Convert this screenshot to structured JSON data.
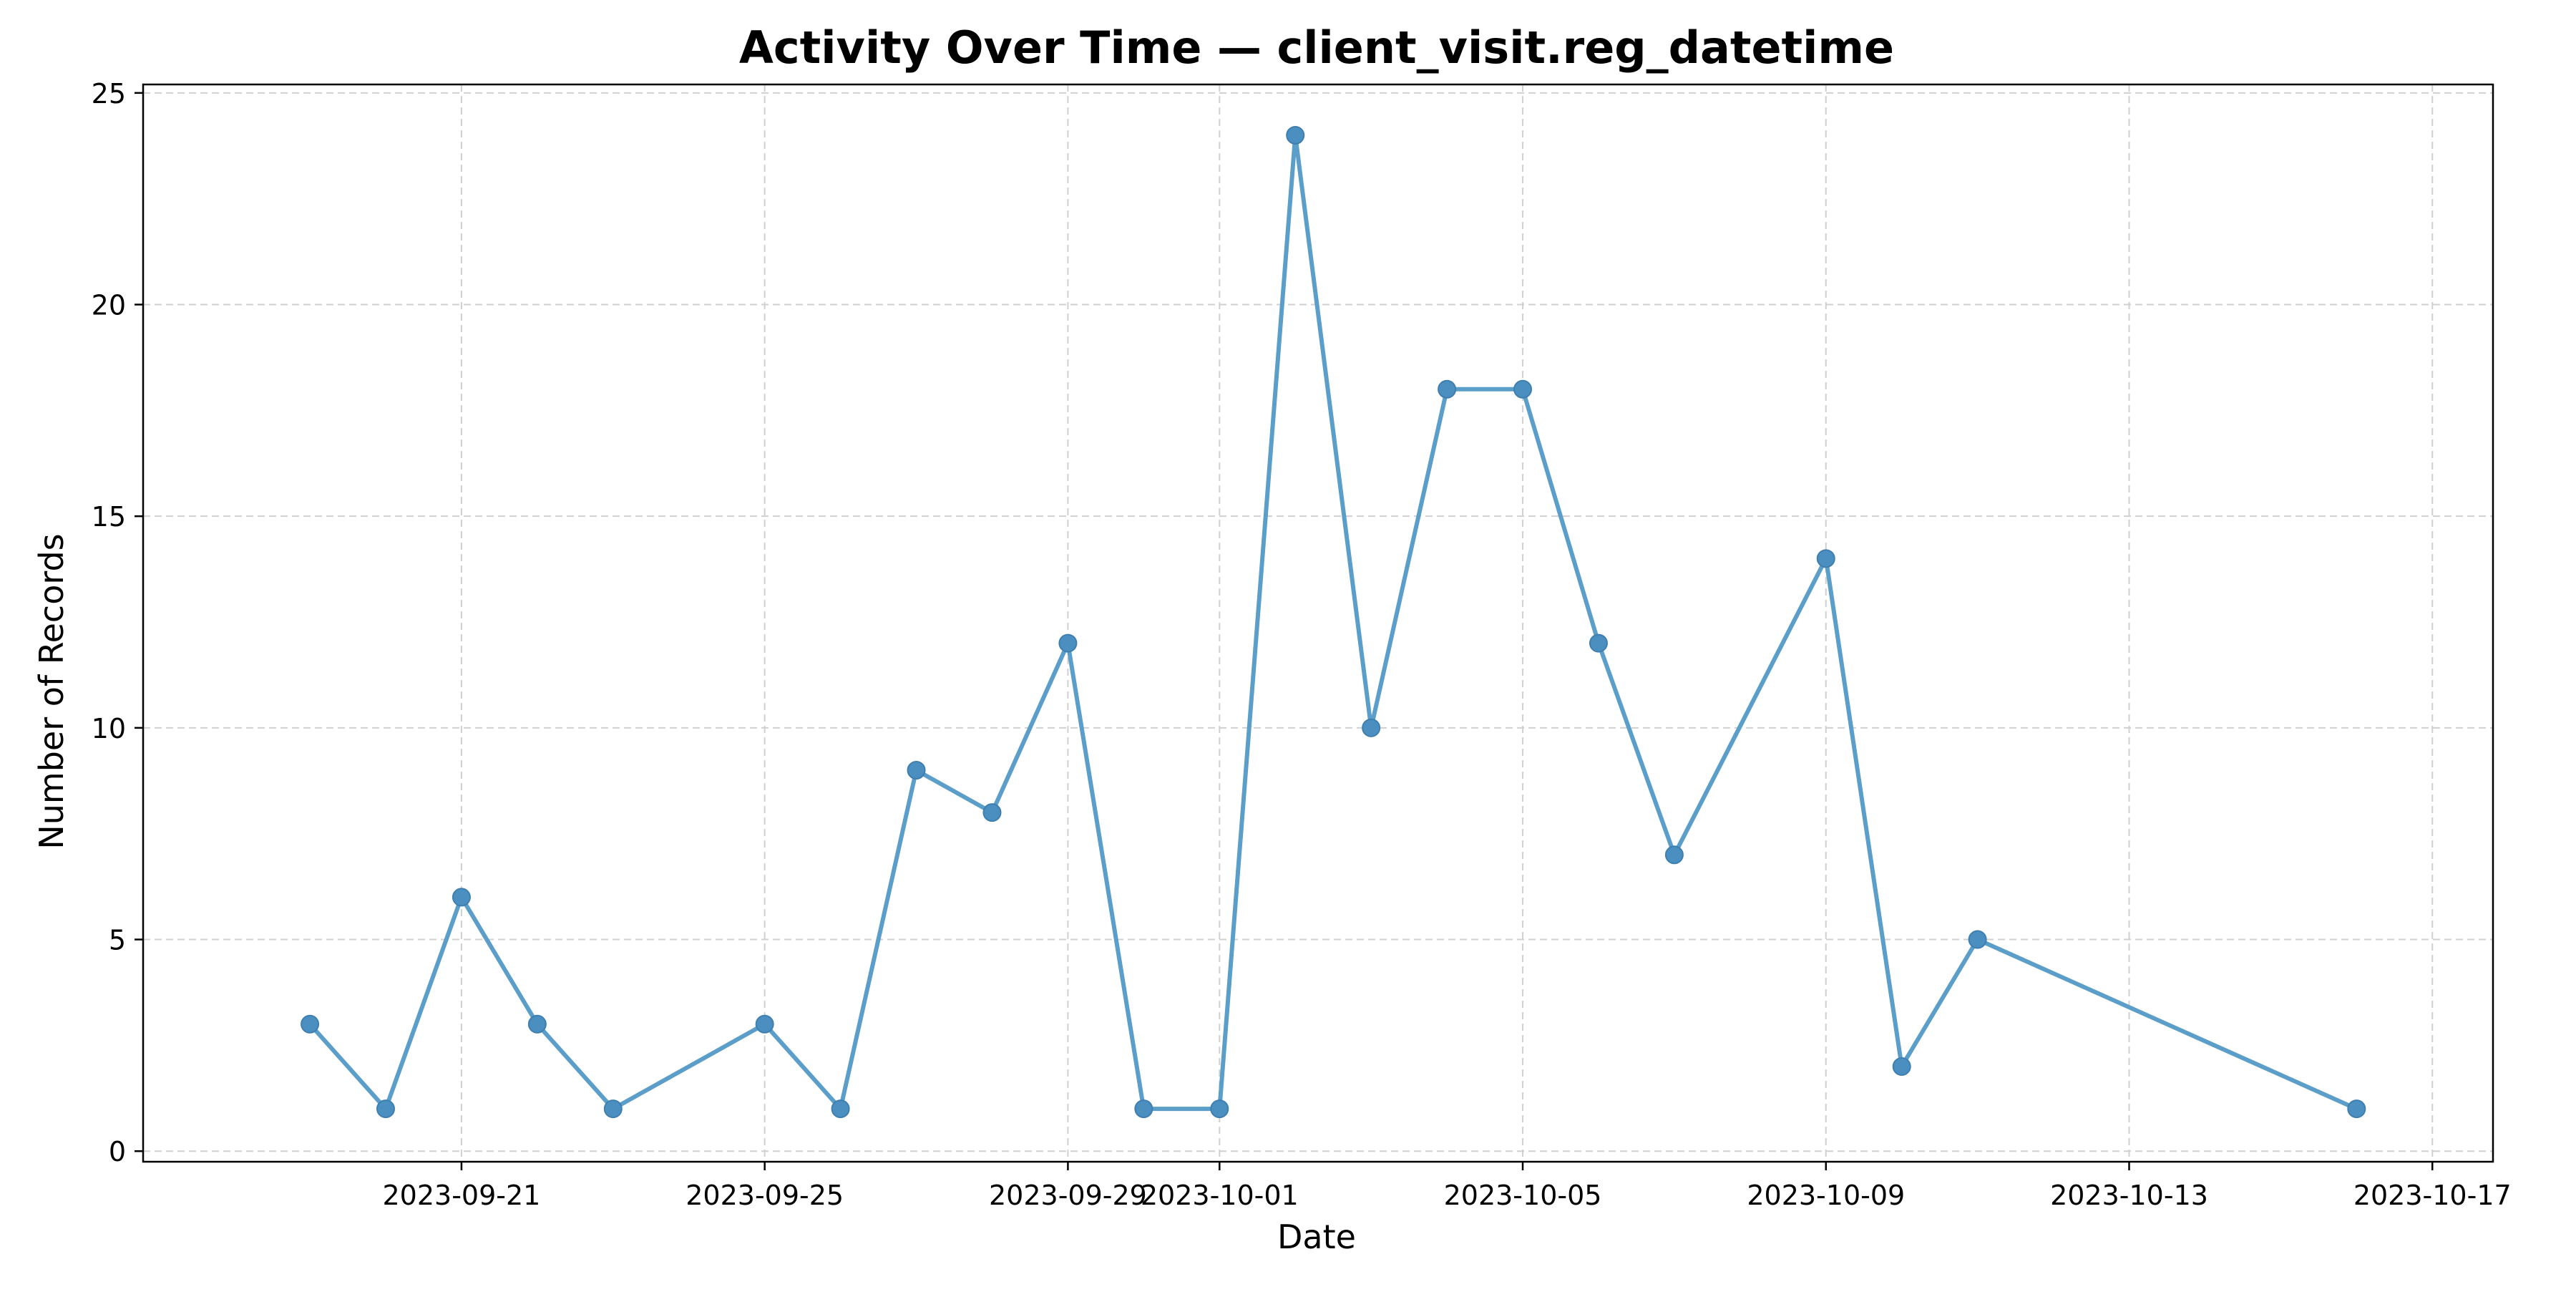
{
  "chart_data": {
    "type": "line",
    "title": "Activity Over Time — client_visit.reg_datetime",
    "xlabel": "Date",
    "ylabel": "Number of Records",
    "x_type": "date",
    "xlim": [
      "2023-09-17",
      "2023-10-17"
    ],
    "ylim": [
      0,
      25
    ],
    "x_ticks": [
      "2023-09-21",
      "2023-09-25",
      "2023-09-29",
      "2023-10-01",
      "2023-10-05",
      "2023-10-09",
      "2023-10-13",
      "2023-10-17"
    ],
    "y_ticks": [
      0,
      5,
      10,
      15,
      20,
      25
    ],
    "grid": true,
    "series": [
      {
        "color": "#5b9ec9",
        "x": [
          "2023-09-19",
          "2023-09-20",
          "2023-09-21",
          "2023-09-22",
          "2023-09-23",
          "2023-09-25",
          "2023-09-26",
          "2023-09-27",
          "2023-09-28",
          "2023-09-29",
          "2023-09-30",
          "2023-10-01",
          "2023-10-02",
          "2023-10-03",
          "2023-10-04",
          "2023-10-05",
          "2023-10-06",
          "2023-10-07",
          "2023-10-09",
          "2023-10-10",
          "2023-10-11",
          "2023-10-16"
        ],
        "values": [
          3,
          1,
          6,
          3,
          1,
          3,
          1,
          9,
          8,
          12,
          1,
          1,
          24,
          10,
          18,
          18,
          12,
          7,
          14,
          2,
          5,
          1
        ]
      }
    ]
  }
}
